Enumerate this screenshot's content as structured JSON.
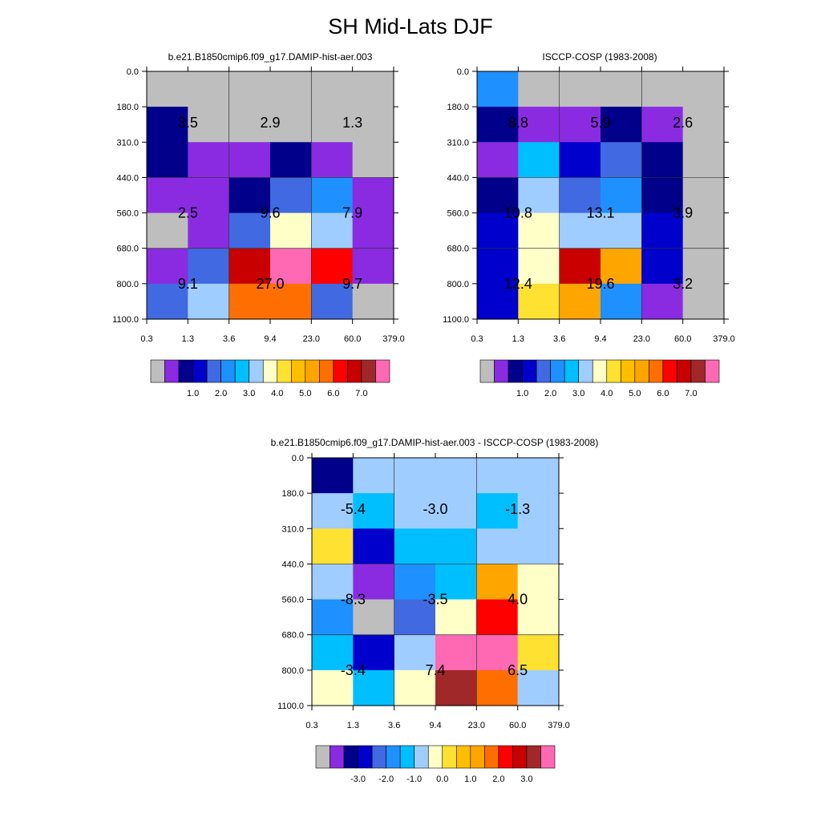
{
  "title": "SH Mid-Lats DJF",
  "colors": {
    "abs_palette": [
      "#bebebe",
      "#8a2be2",
      "#00008b",
      "#0000cd",
      "#4169e1",
      "#1e90ff",
      "#00bfff",
      "#a0cdff",
      "#ffffc8",
      "#ffe132",
      "#ffbe00",
      "#ffa500",
      "#ff6e00",
      "#ff0000",
      "#c80000",
      "#a02828",
      "#ff69b4"
    ],
    "diff_palette": [
      "#bebebe",
      "#8a2be2",
      "#00008b",
      "#0000cd",
      "#4169e1",
      "#1e90ff",
      "#00bfff",
      "#a0cdff",
      "#ffffc8",
      "#ffe132",
      "#ffbe00",
      "#ffa500",
      "#ff6e00",
      "#ff0000",
      "#c80000",
      "#a02828",
      "#ff69b4"
    ]
  },
  "chart_data": [
    {
      "type": "heatmap",
      "title": "b.e21.B1850cmip6.f09_g17.DAMIP-hist-aer.003",
      "x_ticks": [
        "0.3",
        "1.3",
        "3.6",
        "9.4",
        "23.0",
        "60.0",
        "379.0"
      ],
      "y_ticks": [
        "0.0",
        "180.0",
        "310.0",
        "440.0",
        "560.0",
        "680.0",
        "800.0",
        "1100.0"
      ],
      "cell_color_index": [
        [
          0,
          0,
          0,
          0,
          0,
          0
        ],
        [
          2,
          0,
          0,
          0,
          0,
          0
        ],
        [
          2,
          1,
          1,
          2,
          1,
          0
        ],
        [
          1,
          1,
          2,
          4,
          5,
          1
        ],
        [
          0,
          1,
          4,
          8,
          7,
          1
        ],
        [
          1,
          4,
          14,
          16,
          13,
          1
        ],
        [
          4,
          7,
          12,
          12,
          4,
          0
        ]
      ],
      "box_labels": [
        [
          "3.5",
          "2.9",
          "1.3"
        ],
        [
          "2.5",
          "9.6",
          "7.9"
        ],
        [
          "9.1",
          "27.0",
          "9.7"
        ]
      ],
      "colorbar_labels": [
        "1.0",
        "2.0",
        "3.0",
        "4.0",
        "5.0",
        "6.0",
        "7.0"
      ]
    },
    {
      "type": "heatmap",
      "title": "ISCCP-COSP (1983-2008)",
      "x_ticks": [
        "0.3",
        "1.3",
        "3.6",
        "9.4",
        "23.0",
        "60.0",
        "379.0"
      ],
      "y_ticks": [
        "0.0",
        "180.0",
        "310.0",
        "440.0",
        "560.0",
        "680.0",
        "800.0",
        "1100.0"
      ],
      "cell_color_index": [
        [
          5,
          0,
          0,
          0,
          0,
          0
        ],
        [
          2,
          1,
          1,
          2,
          1,
          0
        ],
        [
          1,
          6,
          3,
          4,
          2,
          0
        ],
        [
          2,
          7,
          4,
          5,
          2,
          0
        ],
        [
          3,
          8,
          7,
          7,
          3,
          0
        ],
        [
          3,
          8,
          14,
          11,
          3,
          0
        ],
        [
          3,
          9,
          11,
          5,
          1,
          0
        ]
      ],
      "box_labels": [
        [
          "8.8",
          "5.9",
          "2.6"
        ],
        [
          "10.8",
          "13.1",
          "3.9"
        ],
        [
          "12.4",
          "19.6",
          "3.2"
        ]
      ],
      "colorbar_labels": [
        "1.0",
        "2.0",
        "3.0",
        "4.0",
        "5.0",
        "6.0",
        "7.0"
      ]
    },
    {
      "type": "heatmap",
      "title": "b.e21.B1850cmip6.f09_g17.DAMIP-hist-aer.003 - ISCCP-COSP (1983-2008)",
      "x_ticks": [
        "0.3",
        "1.3",
        "3.6",
        "9.4",
        "23.0",
        "60.0",
        "379.0"
      ],
      "y_ticks": [
        "0.0",
        "180.0",
        "310.0",
        "440.0",
        "560.0",
        "680.0",
        "800.0",
        "1100.0"
      ],
      "cell_color_index": [
        [
          2,
          7,
          7,
          7,
          7,
          7
        ],
        [
          7,
          6,
          7,
          7,
          6,
          7
        ],
        [
          9,
          3,
          6,
          6,
          7,
          7
        ],
        [
          7,
          1,
          5,
          6,
          11,
          8
        ],
        [
          5,
          0,
          4,
          8,
          13,
          8
        ],
        [
          6,
          3,
          7,
          16,
          16,
          9
        ],
        [
          8,
          6,
          8,
          15,
          12,
          7
        ]
      ],
      "box_labels": [
        [
          "-5.4",
          "-3.0",
          "-1.3"
        ],
        [
          "-8.3",
          "-3.5",
          "4.0"
        ],
        [
          "-3.4",
          "7.4",
          "6.5"
        ]
      ],
      "colorbar_labels": [
        "-3.0",
        "-2.0",
        "-1.0",
        "0.0",
        "1.0",
        "2.0",
        "3.0"
      ]
    }
  ]
}
